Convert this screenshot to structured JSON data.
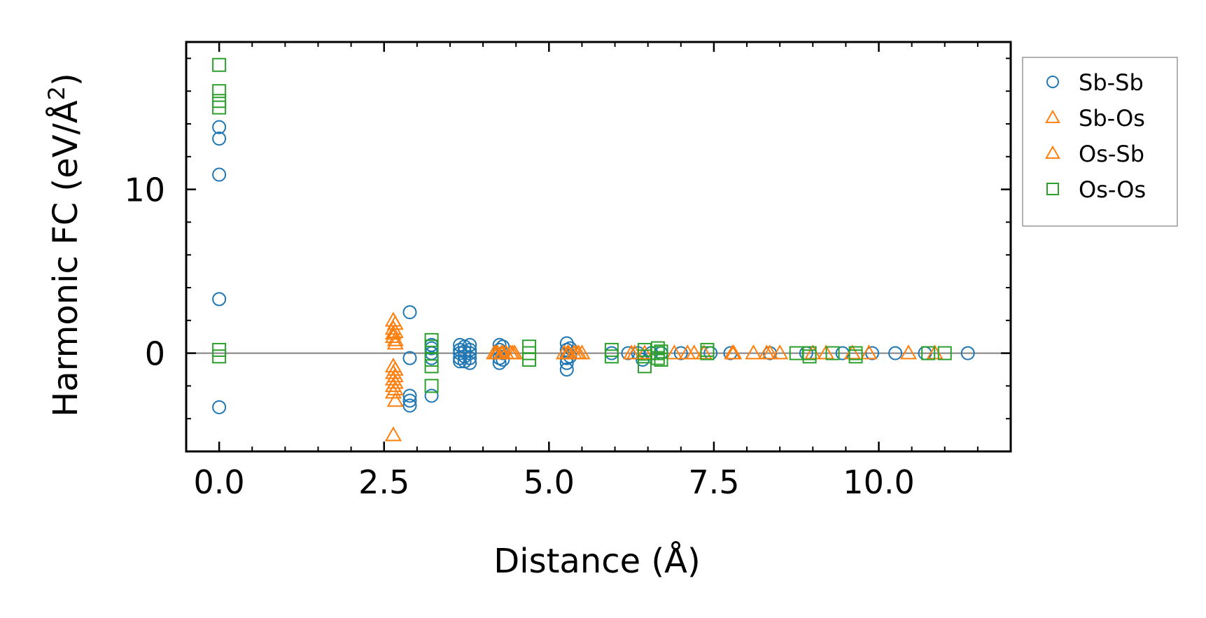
{
  "chart_data": {
    "type": "scatter",
    "title": "",
    "xlabel": "Distance (Å)",
    "ylabel": "Harmonic FC (eV/Å",
    "ylabel_superscript": "2",
    "ylabel_close": ")",
    "xlim": [
      -0.5,
      12.0
    ],
    "ylim": [
      -6.0,
      19.0
    ],
    "x_ticks": [
      0.0,
      2.5,
      5.0,
      7.5,
      10.0
    ],
    "x_tick_labels": [
      "0.0",
      "2.5",
      "5.0",
      "7.5",
      "10.0"
    ],
    "y_ticks": [
      0,
      10
    ],
    "y_tick_labels": [
      "0",
      "10"
    ],
    "zero_line": true,
    "legend_position": "outside-right-top",
    "series": [
      {
        "name": "Sb-Sb",
        "marker": "circle",
        "color": "#1f77b4",
        "points": [
          [
            0,
            13.8
          ],
          [
            0,
            13.1
          ],
          [
            0,
            10.9
          ],
          [
            0,
            3.3
          ],
          [
            0,
            -3.3
          ],
          [
            2.89,
            2.5
          ],
          [
            2.89,
            -0.3
          ],
          [
            2.89,
            -2.6
          ],
          [
            2.89,
            -2.9
          ],
          [
            2.89,
            -3.2
          ],
          [
            3.22,
            0.5
          ],
          [
            3.22,
            0.3
          ],
          [
            3.22,
            0.0
          ],
          [
            3.22,
            -0.3
          ],
          [
            3.22,
            -2.6
          ],
          [
            3.65,
            0.5
          ],
          [
            3.65,
            0.2
          ],
          [
            3.65,
            0.0
          ],
          [
            3.65,
            -0.3
          ],
          [
            3.65,
            -0.5
          ],
          [
            3.72,
            0.4
          ],
          [
            3.72,
            0.1
          ],
          [
            3.72,
            -0.2
          ],
          [
            3.72,
            -0.5
          ],
          [
            3.8,
            0.5
          ],
          [
            3.8,
            0.2
          ],
          [
            3.8,
            0.0
          ],
          [
            3.8,
            -0.3
          ],
          [
            3.8,
            -0.6
          ],
          [
            4.25,
            0.5
          ],
          [
            4.25,
            0.2
          ],
          [
            4.25,
            -0.3
          ],
          [
            4.25,
            -0.6
          ],
          [
            4.3,
            0.4
          ],
          [
            4.3,
            0.0
          ],
          [
            4.3,
            -0.4
          ],
          [
            5.27,
            0.6
          ],
          [
            5.27,
            0.2
          ],
          [
            5.27,
            -0.3
          ],
          [
            5.27,
            -1.0
          ],
          [
            5.27,
            -0.6
          ],
          [
            5.32,
            0.3
          ],
          [
            5.32,
            -0.2
          ],
          [
            5.95,
            0.0
          ],
          [
            6.2,
            0.0
          ],
          [
            6.35,
            0.0
          ],
          [
            6.42,
            -0.4
          ],
          [
            6.55,
            0.0
          ],
          [
            6.7,
            0.0
          ],
          [
            7.0,
            0.0
          ],
          [
            7.45,
            0.0
          ],
          [
            7.75,
            0.0
          ],
          [
            8.35,
            0.0
          ],
          [
            8.9,
            0.0
          ],
          [
            9.45,
            0.0
          ],
          [
            9.9,
            0.0
          ],
          [
            10.25,
            0.0
          ],
          [
            10.7,
            0.0
          ],
          [
            11.35,
            0.0
          ]
        ]
      },
      {
        "name": "Sb-Os",
        "marker": "triangle",
        "color": "#ff7f0e",
        "points": [
          [
            2.64,
            2.0
          ],
          [
            2.64,
            1.5
          ],
          [
            2.64,
            1.2
          ],
          [
            2.64,
            1.0
          ],
          [
            2.64,
            -0.8
          ],
          [
            2.64,
            -1.2
          ],
          [
            2.64,
            -1.6
          ],
          [
            2.64,
            -2.0
          ],
          [
            2.64,
            -2.4
          ],
          [
            2.64,
            -5.0
          ],
          [
            4.17,
            0.0
          ],
          [
            4.22,
            0.0
          ],
          [
            4.28,
            0.0
          ],
          [
            4.35,
            0.0
          ],
          [
            4.42,
            0.0
          ],
          [
            4.48,
            0.0
          ],
          [
            5.23,
            0.0
          ],
          [
            5.3,
            0.0
          ],
          [
            5.38,
            0.0
          ],
          [
            5.45,
            0.0
          ],
          [
            5.5,
            0.0
          ],
          [
            6.25,
            0.0
          ],
          [
            6.45,
            0.0
          ],
          [
            6.9,
            0.0
          ],
          [
            7.1,
            0.0
          ],
          [
            7.35,
            0.0
          ],
          [
            7.78,
            0.0
          ],
          [
            8.1,
            0.0
          ],
          [
            8.3,
            0.0
          ],
          [
            8.5,
            0.0
          ],
          [
            9.2,
            0.0
          ],
          [
            9.85,
            0.0
          ],
          [
            10.45,
            0.0
          ],
          [
            10.85,
            0.0
          ]
        ]
      },
      {
        "name": "Os-Sb",
        "marker": "triangle",
        "color": "#ff7f0e",
        "points": [
          [
            2.67,
            1.8
          ],
          [
            2.67,
            1.3
          ],
          [
            2.67,
            0.8
          ],
          [
            2.67,
            0.6
          ],
          [
            2.67,
            -1.0
          ],
          [
            2.67,
            -1.4
          ],
          [
            2.67,
            -1.8
          ],
          [
            2.67,
            -2.2
          ],
          [
            2.67,
            -2.9
          ],
          [
            4.2,
            0.0
          ],
          [
            4.3,
            0.0
          ],
          [
            4.45,
            0.0
          ],
          [
            5.28,
            0.0
          ],
          [
            5.42,
            0.0
          ],
          [
            6.3,
            0.0
          ],
          [
            7.2,
            0.0
          ],
          [
            7.8,
            0.0
          ],
          [
            8.35,
            0.0
          ],
          [
            9.0,
            0.0
          ],
          [
            9.6,
            0.0
          ]
        ]
      },
      {
        "name": "Os-Os",
        "marker": "square",
        "color": "#2ca02c",
        "points": [
          [
            0,
            17.6
          ],
          [
            0,
            16.0
          ],
          [
            0,
            15.4
          ],
          [
            0,
            15.0
          ],
          [
            0,
            0.2
          ],
          [
            0,
            -0.2
          ],
          [
            3.22,
            0.8
          ],
          [
            3.22,
            0.4
          ],
          [
            3.22,
            -0.4
          ],
          [
            3.22,
            -0.8
          ],
          [
            3.22,
            -2.0
          ],
          [
            4.7,
            0.4
          ],
          [
            4.7,
            0.0
          ],
          [
            4.7,
            -0.4
          ],
          [
            5.95,
            0.2
          ],
          [
            5.95,
            -0.2
          ],
          [
            6.45,
            0.2
          ],
          [
            6.45,
            -0.2
          ],
          [
            6.45,
            -0.8
          ],
          [
            6.65,
            0.3
          ],
          [
            6.65,
            0.0
          ],
          [
            6.65,
            -0.3
          ],
          [
            6.7,
            0.1
          ],
          [
            6.7,
            -0.4
          ],
          [
            7.4,
            0.0
          ],
          [
            7.4,
            0.2
          ],
          [
            8.75,
            0.0
          ],
          [
            8.95,
            0.0
          ],
          [
            8.95,
            -0.2
          ],
          [
            9.3,
            0.0
          ],
          [
            9.65,
            0.0
          ],
          [
            9.65,
            -0.2
          ],
          [
            10.75,
            0.0
          ],
          [
            11.0,
            0.0
          ]
        ]
      }
    ]
  }
}
